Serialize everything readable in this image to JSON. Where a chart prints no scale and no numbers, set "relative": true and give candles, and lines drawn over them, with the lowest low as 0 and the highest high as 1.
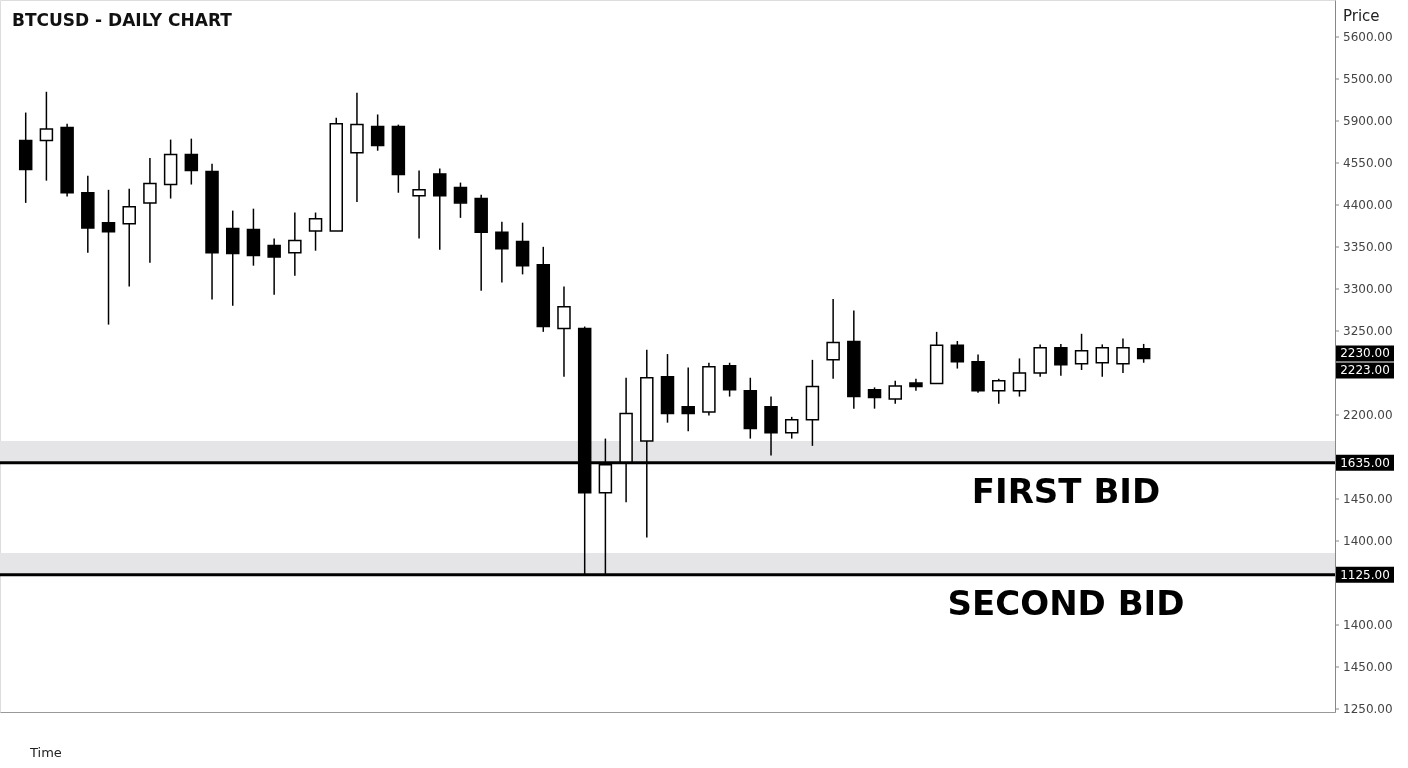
{
  "chart_data": {
    "type": "candlestick",
    "title": "BTCUSD - DAILY CHART",
    "relative": true,
    "categories": [
      null,
      null,
      null,
      null,
      null,
      null,
      null,
      null,
      null,
      null,
      null,
      null,
      null,
      null,
      null,
      null,
      null,
      null,
      null,
      null,
      null,
      null,
      null,
      null,
      null,
      null,
      null,
      null,
      null,
      null,
      null,
      null,
      null,
      null,
      null,
      null,
      null,
      null,
      null,
      null,
      null,
      null,
      null,
      null,
      null,
      null,
      null,
      null,
      null,
      null,
      null,
      null,
      null,
      null,
      null
    ],
    "ohlc": [
      [
        0.899,
        0.957,
        0.77,
        0.839
      ],
      [
        0.899,
        1.0,
        0.816,
        0.923
      ],
      [
        0.926,
        0.934,
        0.783,
        0.791
      ],
      [
        0.791,
        0.826,
        0.667,
        0.718
      ],
      [
        0.729,
        0.797,
        0.518,
        0.71
      ],
      [
        0.727,
        0.799,
        0.597,
        0.762
      ],
      [
        0.77,
        0.863,
        0.646,
        0.81
      ],
      [
        0.808,
        0.901,
        0.779,
        0.87
      ],
      [
        0.87,
        0.903,
        0.808,
        0.837
      ],
      [
        0.835,
        0.851,
        0.57,
        0.667
      ],
      [
        0.717,
        0.754,
        0.557,
        0.665
      ],
      [
        0.715,
        0.758,
        0.64,
        0.661
      ],
      [
        0.682,
        0.696,
        0.58,
        0.658
      ],
      [
        0.667,
        0.75,
        0.619,
        0.692
      ],
      [
        0.712,
        0.75,
        0.671,
        0.737
      ],
      [
        0.712,
        0.946,
        0.712,
        0.934
      ],
      [
        0.874,
        0.998,
        0.772,
        0.932
      ],
      [
        0.928,
        0.953,
        0.878,
        0.889
      ],
      [
        0.928,
        0.932,
        0.791,
        0.829
      ],
      [
        0.785,
        0.837,
        0.696,
        0.797
      ],
      [
        0.83,
        0.841,
        0.673,
        0.785
      ],
      [
        0.802,
        0.812,
        0.739,
        0.77
      ],
      [
        0.779,
        0.787,
        0.588,
        0.709
      ],
      [
        0.709,
        0.731,
        0.605,
        0.675
      ],
      [
        0.69,
        0.729,
        0.622,
        0.64
      ],
      [
        0.642,
        0.679,
        0.503,
        0.514
      ],
      [
        0.51,
        0.597,
        0.41,
        0.555
      ],
      [
        0.51,
        0.514,
        0.0,
        0.17
      ],
      [
        0.17,
        0.282,
        0.0,
        0.228
      ],
      [
        0.232,
        0.408,
        0.15,
        0.334
      ],
      [
        0.277,
        0.466,
        0.077,
        0.408
      ],
      [
        0.41,
        0.457,
        0.315,
        0.334
      ],
      [
        0.348,
        0.429,
        0.297,
        0.334
      ],
      [
        0.337,
        0.439,
        0.33,
        0.431
      ],
      [
        0.433,
        0.439,
        0.369,
        0.383
      ],
      [
        0.381,
        0.408,
        0.282,
        0.303
      ],
      [
        0.348,
        0.369,
        0.247,
        0.294
      ],
      [
        0.294,
        0.327,
        0.282,
        0.321
      ],
      [
        0.321,
        0.445,
        0.267,
        0.39
      ],
      [
        0.445,
        0.571,
        0.406,
        0.481
      ],
      [
        0.483,
        0.547,
        0.344,
        0.369
      ],
      [
        0.383,
        0.388,
        0.344,
        0.367
      ],
      [
        0.364,
        0.402,
        0.354,
        0.391
      ],
      [
        0.397,
        0.406,
        0.381,
        0.39
      ],
      [
        0.396,
        0.503,
        0.396,
        0.475
      ],
      [
        0.475,
        0.484,
        0.427,
        0.441
      ],
      [
        0.441,
        0.456,
        0.377,
        0.381
      ],
      [
        0.381,
        0.406,
        0.354,
        0.402
      ],
      [
        0.381,
        0.448,
        0.369,
        0.418
      ],
      [
        0.418,
        0.477,
        0.41,
        0.47
      ],
      [
        0.47,
        0.478,
        0.412,
        0.435
      ],
      [
        0.437,
        0.499,
        0.424,
        0.464
      ],
      [
        0.439,
        0.477,
        0.41,
        0.47
      ],
      [
        0.437,
        0.489,
        0.418,
        0.47
      ],
      [
        0.468,
        0.478,
        0.439,
        0.448
      ]
    ],
    "bands": [
      {
        "axis": "y",
        "from": 0.232,
        "to": 0.277,
        "color": "#e5e5e8"
      },
      {
        "axis": "y",
        "from": 0.0,
        "to": 0.045,
        "color": "#e5e5e8"
      }
    ],
    "ref_lines": [
      {
        "axis": "y",
        "value": 0.232,
        "label": "FIRST BID"
      },
      {
        "axis": "y",
        "value": 0.0,
        "label": "SECOND BID"
      }
    ],
    "annotations": [
      "Price",
      "Time",
      "1635.00",
      "1125.00",
      "2230.00",
      "2223.00",
      "5600.00",
      "5500.00",
      "5900.00",
      "4550.00",
      "4400.00",
      "3350.00",
      "3300.00",
      "3250.00",
      "2200.00",
      "1450.00",
      "1400.00",
      "1400.00",
      "1450.00",
      "1250.00"
    ]
  }
}
